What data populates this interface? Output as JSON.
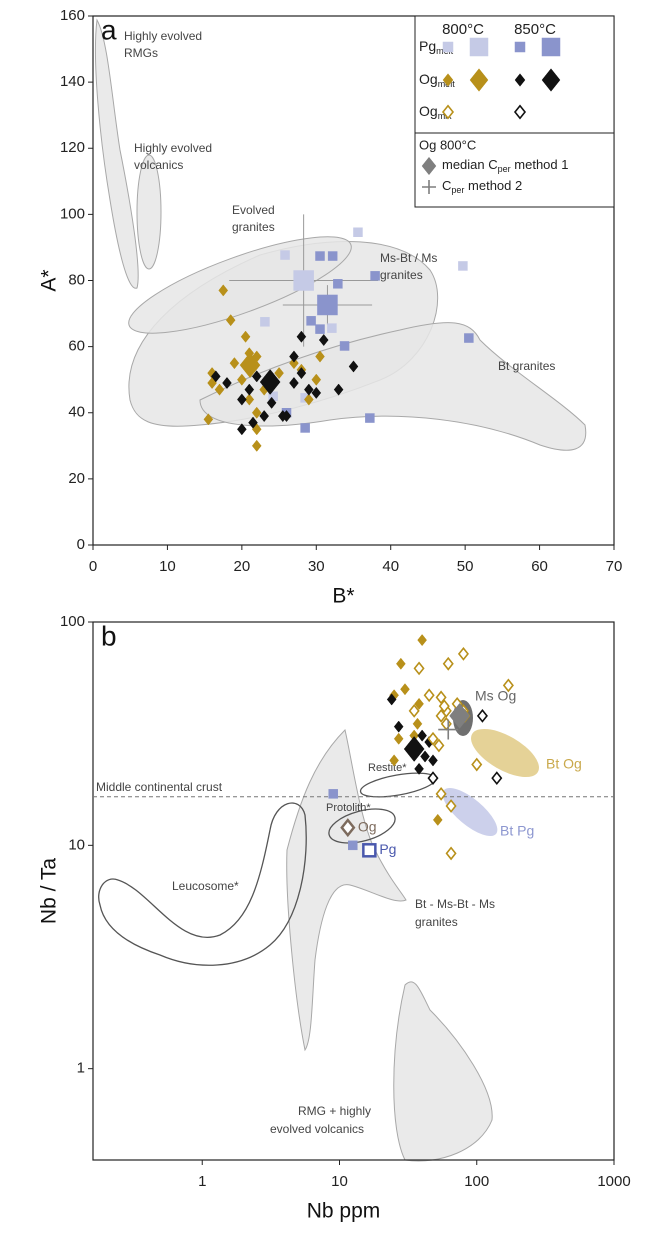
{
  "chart_data": [
    {
      "type": "scatter",
      "label": "a",
      "xlabel": "B*",
      "ylabel": "A*",
      "xlim": [
        0,
        70
      ],
      "ylim": [
        0,
        160
      ],
      "xticks": [
        0,
        10,
        20,
        30,
        40,
        50,
        60,
        70
      ],
      "yticks": [
        0,
        20,
        40,
        60,
        80,
        100,
        120,
        140,
        160
      ],
      "series": [
        {
          "name": "Pg",
          "sub": "melt",
          "temperature": "800°C",
          "color": "#c5cae6",
          "marker": "square",
          "filled": true,
          "x": [
            25.8,
            23.1,
            35.6,
            49.7,
            32.1,
            28.5,
            24.2
          ],
          "y": [
            87.7,
            67.5,
            94.6,
            84.4,
            65.6,
            44.5,
            45
          ],
          "median": {
            "x": 28.3,
            "y": 80,
            "xerr": 10,
            "yerr": 20
          }
        },
        {
          "name": "Pg",
          "sub": "melt",
          "temperature": "850°C",
          "color": "#8a94cc",
          "marker": "square",
          "filled": true,
          "x": [
            30.5,
            32.2,
            32.9,
            37.9,
            29.3,
            30.5,
            33.8,
            28.5,
            37.2,
            50.5,
            26
          ],
          "y": [
            87.4,
            87.4,
            79,
            81.4,
            67.8,
            65.3,
            60.2,
            35.4,
            38.4,
            62.6,
            40
          ],
          "median": {
            "x": 31.5,
            "y": 72.6,
            "xerr": 6,
            "yerr": 6
          }
        },
        {
          "name": "Og",
          "sub": "melt",
          "temperature": "800°C",
          "color": "#b8901a",
          "marker": "diamond",
          "filled": true,
          "x": [
            17.5,
            18.5,
            20.5,
            21,
            22,
            19,
            16,
            16,
            17,
            15.5,
            21,
            22,
            22,
            22,
            25,
            27,
            28,
            30,
            30.5,
            29,
            20,
            23
          ],
          "y": [
            77,
            68,
            63,
            58,
            57,
            55,
            52,
            49,
            47,
            38,
            44,
            40,
            35,
            30,
            52,
            55,
            53,
            50,
            57,
            44,
            50,
            47
          ],
          "median": {
            "x": 21.1,
            "y": 54.4
          }
        },
        {
          "name": "Og",
          "sub": "melt",
          "temperature": "850°C",
          "color": "#111111",
          "marker": "diamond",
          "filled": true,
          "x": [
            16.5,
            18,
            20,
            20,
            21,
            21.5,
            23,
            24,
            25.5,
            26,
            27,
            27,
            28,
            28,
            29,
            30,
            31,
            33,
            35,
            22
          ],
          "y": [
            51,
            49,
            44,
            35,
            47,
            37,
            39,
            43,
            39,
            39,
            57,
            49,
            63,
            52,
            47,
            46,
            62,
            47,
            54,
            51
          ],
          "median": {
            "x": 23.8,
            "y": 49.3
          }
        },
        {
          "name": "Og",
          "sub": "mix",
          "temperature": "800°C",
          "color": "#b8901a",
          "marker": "diamond",
          "filled": false,
          "x": [],
          "y": []
        },
        {
          "name": "Og",
          "sub": "mix",
          "temperature": "850°C",
          "color": "#111111",
          "marker": "diamond",
          "filled": false,
          "x": [],
          "y": []
        }
      ],
      "method_legend": {
        "title": "Og 800°C",
        "color": "#7f7f7f",
        "items": [
          {
            "marker": "diamond",
            "text": "median C",
            "sub": "per",
            "after": " method 1"
          },
          {
            "marker": "plus",
            "text": "C",
            "sub": "per",
            "after": " method 2"
          }
        ]
      },
      "annotations": [
        {
          "lines": [
            "Highly evolved",
            "RMGs"
          ]
        },
        {
          "lines": [
            "Highly evolved",
            "volcanics"
          ]
        },
        {
          "lines": [
            "Evolved",
            "granites"
          ]
        },
        {
          "lines": [
            "Ms-Bt / Ms",
            "granites"
          ]
        },
        {
          "lines": [
            "Bt granites"
          ]
        }
      ]
    },
    {
      "type": "scatter",
      "label": "b",
      "xlabel": "Nb ppm",
      "ylabel": "Nb / Ta",
      "log_x": true,
      "log_y": true,
      "xlim": [
        0.16,
        1000
      ],
      "ylim": [
        0.39,
        100
      ],
      "xticks": [
        1,
        10,
        100,
        1000
      ],
      "yticks": [
        1,
        10,
        100
      ],
      "reference_line": {
        "value": 16.5,
        "label": "Middle continental crust"
      },
      "series": [
        {
          "color": "#8a94cc",
          "marker": "square",
          "filled": true,
          "x": [
            9,
            12.5
          ],
          "y": [
            17,
            10
          ]
        },
        {
          "color": "#b8901a",
          "marker": "diamond",
          "filled": true,
          "x": [
            40,
            28,
            30,
            25,
            38,
            37,
            27,
            25,
            52,
            35
          ],
          "y": [
            83,
            65,
            50,
            47,
            43,
            35,
            30,
            24,
            13,
            31
          ]
        },
        {
          "color": "#111111",
          "marker": "diamond",
          "filled": true,
          "x": [
            24,
            27,
            40,
            45,
            42,
            38,
            48
          ],
          "y": [
            45,
            34,
            31,
            29,
            25,
            22,
            24
          ],
          "median": {
            "x": 35,
            "y": 27
          }
        },
        {
          "color": "#b8901a",
          "marker": "diamond",
          "filled": false,
          "x": [
            62,
            80,
            170,
            45,
            35,
            55,
            60,
            58,
            55,
            60,
            48,
            53,
            72,
            80,
            82,
            100,
            55,
            65,
            65,
            38
          ],
          "y": [
            65,
            72,
            52,
            47,
            40,
            46,
            40,
            42,
            38,
            35,
            30,
            28,
            43,
            40,
            38,
            23,
            17,
            15,
            9.2,
            62
          ]
        },
        {
          "color": "#111111",
          "marker": "diamond",
          "filled": false,
          "x": [
            110,
            48,
            140
          ],
          "y": [
            38,
            20,
            20
          ]
        },
        {
          "color": "#7f7f7f",
          "marker": "diamond",
          "filled": true,
          "x": [],
          "y": [],
          "median": {
            "x": 75,
            "y": 38
          }
        },
        {
          "color": "#7f7f7f",
          "marker": "plus",
          "filled": true,
          "x": [],
          "y": [],
          "median": {
            "x": 62,
            "y": 33
          }
        }
      ],
      "protoliths": [
        {
          "label": "Og",
          "x": 11.5,
          "y": 12,
          "color": "#7d6b5d",
          "marker": "diamond"
        },
        {
          "label": "Pg",
          "x": 16.5,
          "y": 9.5,
          "color": "#4a58ad",
          "marker": "square"
        }
      ],
      "annotations": [
        {
          "lines": [
            "Bt - Ms-Bt - Ms",
            "granites"
          ]
        },
        {
          "lines": [
            "RMG + highly",
            "evolved volcanics"
          ]
        },
        {
          "lines": [
            "Leucosome*"
          ]
        },
        {
          "lines": [
            "Protolith*"
          ]
        },
        {
          "lines": [
            "Restite*"
          ]
        },
        {
          "lines": [
            "Ms Og"
          ]
        },
        {
          "lines": [
            "Bt Og"
          ]
        },
        {
          "lines": [
            "Bt Pg"
          ]
        }
      ]
    }
  ]
}
